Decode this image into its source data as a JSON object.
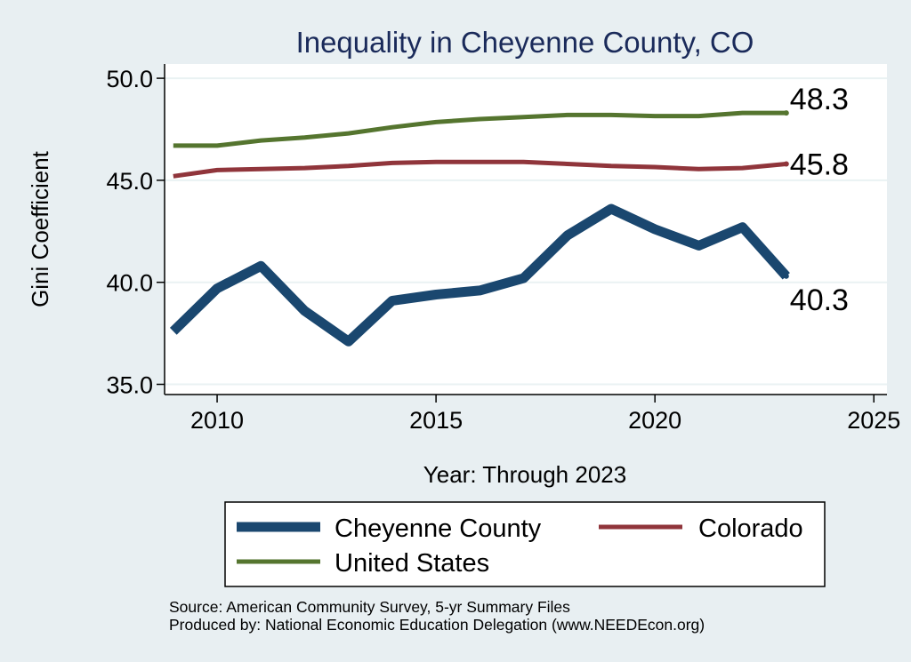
{
  "chart_data": {
    "type": "line",
    "title": "Inequality in Cheyenne County, CO",
    "xlabel": "Year: Through 2023",
    "ylabel": "Gini Coefficient",
    "xlim": [
      2008.8,
      2025.3
    ],
    "ylim": [
      34.5,
      50.7
    ],
    "xticks": [
      2010,
      2015,
      2020,
      2025
    ],
    "xtick_labels": [
      "2010",
      "2015",
      "2020",
      "2025"
    ],
    "yticks": [
      35,
      40,
      45,
      50
    ],
    "ytick_labels": [
      "35.0",
      "40.0",
      "45.0",
      "50.0"
    ],
    "grid": true,
    "x": [
      2009,
      2010,
      2011,
      2012,
      2013,
      2014,
      2015,
      2016,
      2017,
      2018,
      2019,
      2020,
      2021,
      2022,
      2023
    ],
    "series": [
      {
        "name": "Cheyenne County",
        "color": "#1a476f",
        "values": [
          37.6,
          39.7,
          40.8,
          38.6,
          37.1,
          39.1,
          39.4,
          39.6,
          40.2,
          42.3,
          43.6,
          42.6,
          41.8,
          42.7,
          40.3
        ],
        "end_label": "40.3"
      },
      {
        "name": "Colorado",
        "color": "#90353b",
        "values": [
          45.2,
          45.5,
          45.55,
          45.6,
          45.7,
          45.85,
          45.9,
          45.9,
          45.9,
          45.8,
          45.7,
          45.65,
          45.55,
          45.6,
          45.8
        ],
        "end_label": "45.8"
      },
      {
        "name": "United States",
        "color": "#55752f",
        "values": [
          46.7,
          46.7,
          46.95,
          47.1,
          47.3,
          47.6,
          47.85,
          48.0,
          48.1,
          48.2,
          48.2,
          48.15,
          48.15,
          48.3,
          48.3
        ],
        "end_label": "48.3"
      }
    ],
    "legend": {
      "position": "bottom",
      "entries": [
        "Cheyenne County",
        "Colorado",
        "United States"
      ]
    },
    "notes": [
      "Source: American Community Survey, 5-yr Summary Files",
      "Produced by: National Economic Education Delegation (www.NEEDEcon.org)"
    ]
  }
}
